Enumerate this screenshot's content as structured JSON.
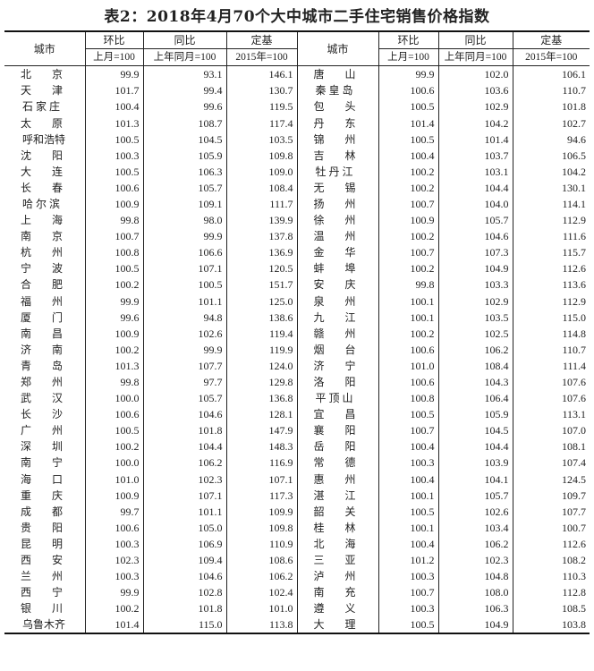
{
  "title": "表2：2018年4月70个大中城市二手住宅销售价格指数",
  "headers": {
    "city": "城市",
    "mom": "环比",
    "yoy": "同比",
    "base": "定基",
    "mom_sub": "上月=100",
    "yoy_sub": "上年同月=100",
    "base_sub": "2015年=100"
  },
  "left": [
    [
      "北京",
      "99.9",
      "93.1",
      "146.1"
    ],
    [
      "天津",
      "101.7",
      "99.4",
      "130.7"
    ],
    [
      "石家庄",
      "100.4",
      "99.6",
      "119.5"
    ],
    [
      "太原",
      "101.3",
      "108.7",
      "117.4"
    ],
    [
      "呼和浩特",
      "100.5",
      "104.5",
      "103.5"
    ],
    [
      "沈阳",
      "100.3",
      "105.9",
      "109.8"
    ],
    [
      "大连",
      "100.5",
      "106.3",
      "109.0"
    ],
    [
      "长春",
      "100.6",
      "105.7",
      "108.4"
    ],
    [
      "哈尔滨",
      "100.9",
      "109.1",
      "111.7"
    ],
    [
      "上海",
      "99.8",
      "98.0",
      "139.9"
    ],
    [
      "南京",
      "100.7",
      "99.9",
      "137.8"
    ],
    [
      "杭州",
      "100.8",
      "106.6",
      "136.9"
    ],
    [
      "宁波",
      "100.5",
      "107.1",
      "120.5"
    ],
    [
      "合肥",
      "100.2",
      "100.5",
      "151.7"
    ],
    [
      "福州",
      "99.9",
      "101.1",
      "125.0"
    ],
    [
      "厦门",
      "99.6",
      "94.8",
      "138.6"
    ],
    [
      "南昌",
      "100.9",
      "102.6",
      "119.4"
    ],
    [
      "济南",
      "100.2",
      "99.9",
      "119.9"
    ],
    [
      "青岛",
      "101.3",
      "107.7",
      "124.0"
    ],
    [
      "郑州",
      "99.8",
      "97.7",
      "129.8"
    ],
    [
      "武汉",
      "100.0",
      "105.7",
      "136.8"
    ],
    [
      "长沙",
      "100.6",
      "104.6",
      "128.1"
    ],
    [
      "广州",
      "100.5",
      "101.8",
      "147.9"
    ],
    [
      "深圳",
      "100.2",
      "104.4",
      "148.3"
    ],
    [
      "南宁",
      "100.0",
      "106.2",
      "116.9"
    ],
    [
      "海口",
      "101.0",
      "102.3",
      "107.1"
    ],
    [
      "重庆",
      "100.9",
      "107.1",
      "117.3"
    ],
    [
      "成都",
      "99.7",
      "101.1",
      "109.9"
    ],
    [
      "贵阳",
      "100.6",
      "105.0",
      "109.8"
    ],
    [
      "昆明",
      "100.3",
      "106.9",
      "110.9"
    ],
    [
      "西安",
      "102.3",
      "109.4",
      "108.6"
    ],
    [
      "兰州",
      "100.3",
      "104.6",
      "106.2"
    ],
    [
      "西宁",
      "99.9",
      "102.8",
      "102.4"
    ],
    [
      "银川",
      "100.2",
      "101.8",
      "101.0"
    ],
    [
      "乌鲁木齐",
      "101.4",
      "115.0",
      "113.8"
    ]
  ],
  "right": [
    [
      "唐山",
      "99.9",
      "102.0",
      "106.1"
    ],
    [
      "秦皇岛",
      "100.6",
      "103.6",
      "110.7"
    ],
    [
      "包头",
      "100.5",
      "102.9",
      "101.8"
    ],
    [
      "丹东",
      "101.4",
      "104.2",
      "102.7"
    ],
    [
      "锦州",
      "100.5",
      "101.4",
      "94.6"
    ],
    [
      "吉林",
      "100.4",
      "103.7",
      "106.5"
    ],
    [
      "牡丹江",
      "100.2",
      "103.1",
      "104.2"
    ],
    [
      "无锡",
      "100.2",
      "104.4",
      "130.1"
    ],
    [
      "扬州",
      "100.7",
      "104.0",
      "114.1"
    ],
    [
      "徐州",
      "100.9",
      "105.7",
      "112.9"
    ],
    [
      "温州",
      "100.2",
      "104.6",
      "111.6"
    ],
    [
      "金华",
      "100.7",
      "107.3",
      "115.7"
    ],
    [
      "蚌埠",
      "100.2",
      "104.9",
      "112.6"
    ],
    [
      "安庆",
      "99.8",
      "103.3",
      "113.6"
    ],
    [
      "泉州",
      "100.1",
      "102.9",
      "112.9"
    ],
    [
      "九江",
      "100.1",
      "103.5",
      "115.0"
    ],
    [
      "赣州",
      "100.2",
      "102.5",
      "114.8"
    ],
    [
      "烟台",
      "100.6",
      "106.2",
      "110.7"
    ],
    [
      "济宁",
      "101.0",
      "108.4",
      "111.4"
    ],
    [
      "洛阳",
      "100.6",
      "104.3",
      "107.6"
    ],
    [
      "平顶山",
      "100.8",
      "106.4",
      "107.6"
    ],
    [
      "宜昌",
      "100.5",
      "105.9",
      "113.1"
    ],
    [
      "襄阳",
      "100.7",
      "104.5",
      "107.0"
    ],
    [
      "岳阳",
      "100.4",
      "104.4",
      "108.1"
    ],
    [
      "常德",
      "100.3",
      "103.9",
      "107.4"
    ],
    [
      "惠州",
      "100.4",
      "104.1",
      "124.5"
    ],
    [
      "湛江",
      "100.1",
      "105.7",
      "109.7"
    ],
    [
      "韶关",
      "100.5",
      "102.6",
      "107.7"
    ],
    [
      "桂林",
      "100.1",
      "103.4",
      "100.7"
    ],
    [
      "北海",
      "100.4",
      "106.2",
      "112.6"
    ],
    [
      "三亚",
      "101.2",
      "102.3",
      "108.2"
    ],
    [
      "泸州",
      "100.3",
      "104.8",
      "110.3"
    ],
    [
      "南充",
      "100.7",
      "108.0",
      "112.8"
    ],
    [
      "遵义",
      "100.3",
      "106.3",
      "108.5"
    ],
    [
      "大理",
      "100.5",
      "104.9",
      "103.8"
    ]
  ]
}
